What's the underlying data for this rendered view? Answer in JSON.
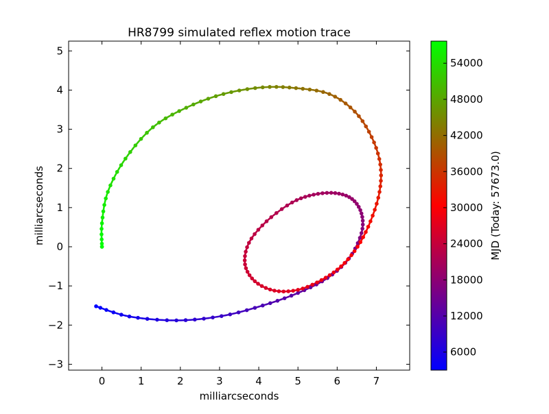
{
  "chart_data": {
    "type": "scatter",
    "title": "HR8799 simulated reflex motion trace",
    "xlabel": "milliarcseconds",
    "ylabel": "milliarcseconds",
    "xlim": [
      -0.85,
      7.85
    ],
    "ylim": [
      -3.15,
      5.25
    ],
    "xticks": [
      0,
      1,
      2,
      3,
      4,
      5,
      6,
      7
    ],
    "yticks": [
      -3,
      -2,
      -1,
      0,
      1,
      2,
      3,
      4,
      5
    ],
    "grid": false,
    "colorbar": {
      "label": "MJD (Today: 57673.0)",
      "range": [
        3000,
        57673
      ],
      "ticks": [
        6000,
        12000,
        18000,
        24000,
        30000,
        36000,
        42000,
        48000,
        54000
      ],
      "colormap": [
        "#0000ff",
        "#ff0000",
        "#00ff00"
      ]
    },
    "series": [
      {
        "color_by": "MJD",
        "trace": [
          {
            "x": -0.15,
            "y": -1.52,
            "mjd": 3000
          },
          {
            "x": 0.7,
            "y": -1.78,
            "mjd": 5000
          },
          {
            "x": 1.9,
            "y": -1.88,
            "mjd": 7000
          },
          {
            "x": 3.05,
            "y": -1.77,
            "mjd": 9000
          },
          {
            "x": 4.1,
            "y": -1.5,
            "mjd": 11000
          },
          {
            "x": 5.0,
            "y": -1.18,
            "mjd": 13000
          },
          {
            "x": 5.75,
            "y": -0.8,
            "mjd": 14500
          },
          {
            "x": 6.3,
            "y": -0.3,
            "mjd": 16000
          },
          {
            "x": 6.62,
            "y": 0.35,
            "mjd": 17000
          },
          {
            "x": 6.62,
            "y": 0.85,
            "mjd": 18000
          },
          {
            "x": 6.38,
            "y": 1.22,
            "mjd": 19000
          },
          {
            "x": 5.95,
            "y": 1.37,
            "mjd": 19800
          },
          {
            "x": 5.4,
            "y": 1.33,
            "mjd": 20600
          },
          {
            "x": 4.85,
            "y": 1.13,
            "mjd": 21500
          },
          {
            "x": 4.2,
            "y": 0.65,
            "mjd": 22600
          },
          {
            "x": 3.75,
            "y": 0.1,
            "mjd": 23600
          },
          {
            "x": 3.65,
            "y": -0.45,
            "mjd": 24600
          },
          {
            "x": 3.9,
            "y": -0.88,
            "mjd": 25500
          },
          {
            "x": 4.4,
            "y": -1.12,
            "mjd": 26500
          },
          {
            "x": 5.0,
            "y": -1.1,
            "mjd": 27400
          },
          {
            "x": 5.6,
            "y": -0.85,
            "mjd": 28200
          },
          {
            "x": 6.1,
            "y": -0.5,
            "mjd": 29000
          },
          {
            "x": 6.52,
            "y": 0.0,
            "mjd": 30200
          },
          {
            "x": 6.85,
            "y": 0.65,
            "mjd": 31600
          },
          {
            "x": 7.08,
            "y": 1.4,
            "mjd": 33200
          },
          {
            "x": 7.1,
            "y": 2.1,
            "mjd": 35000
          },
          {
            "x": 6.88,
            "y": 2.8,
            "mjd": 37000
          },
          {
            "x": 6.45,
            "y": 3.45,
            "mjd": 39000
          },
          {
            "x": 5.8,
            "y": 3.9,
            "mjd": 41000
          },
          {
            "x": 4.95,
            "y": 4.05,
            "mjd": 43000
          },
          {
            "x": 4.1,
            "y": 4.07,
            "mjd": 45000
          },
          {
            "x": 3.1,
            "y": 3.9,
            "mjd": 47000
          },
          {
            "x": 2.15,
            "y": 3.55,
            "mjd": 49000
          },
          {
            "x": 1.3,
            "y": 3.05,
            "mjd": 51000
          },
          {
            "x": 0.6,
            "y": 2.25,
            "mjd": 53000
          },
          {
            "x": 0.15,
            "y": 1.4,
            "mjd": 55000
          },
          {
            "x": 0.0,
            "y": 0.6,
            "mjd": 56500
          },
          {
            "x": 0.0,
            "y": 0.0,
            "mjd": 57673
          }
        ]
      }
    ]
  }
}
